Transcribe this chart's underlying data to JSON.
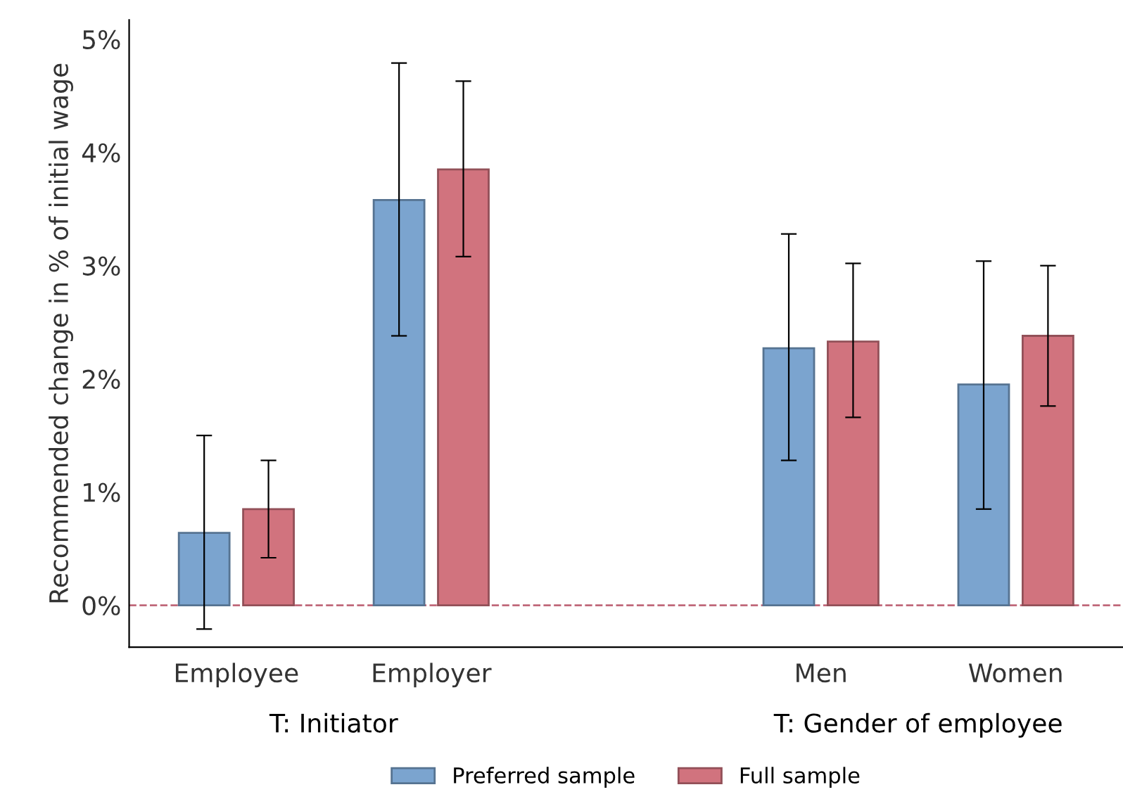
{
  "chart_data": {
    "type": "bar",
    "ylabel": "Recommended change in % of initial wage",
    "categories": [
      "Employee",
      "Employer",
      null,
      "Men",
      "Women"
    ],
    "series": [
      {
        "name": "Preferred sample",
        "color": "#7ba4cf",
        "values": [
          0.64,
          3.58,
          null,
          2.27,
          1.95
        ],
        "errors": [
          [
            -0.21,
            1.5
          ],
          [
            2.38,
            4.79
          ],
          null,
          [
            1.28,
            3.28
          ],
          [
            0.85,
            3.04
          ]
        ]
      },
      {
        "name": "Full sample",
        "color": "#d1737e",
        "values": [
          0.85,
          3.85,
          null,
          2.33,
          2.38
        ],
        "errors": [
          [
            0.42,
            1.28
          ],
          [
            3.08,
            4.63
          ],
          null,
          [
            1.66,
            3.02
          ],
          [
            1.76,
            3.0
          ]
        ]
      }
    ],
    "ylim": [
      -0.37,
      5.17
    ],
    "yticks": [
      {
        "value": 0,
        "label": "0%"
      },
      {
        "value": 1,
        "label": "1%"
      },
      {
        "value": 2,
        "label": "2%"
      },
      {
        "value": 3,
        "label": "3%"
      },
      {
        "value": 4,
        "label": "4%"
      },
      {
        "value": 5,
        "label": "5%"
      }
    ],
    "ref_lines": [
      {
        "axis": "y",
        "value": 0,
        "color": "#c0687a",
        "line_style": "dashed"
      }
    ],
    "annotations": [
      "T: Initiator",
      "T: Gender of employee"
    ],
    "grid": false,
    "legend": "bottom"
  }
}
